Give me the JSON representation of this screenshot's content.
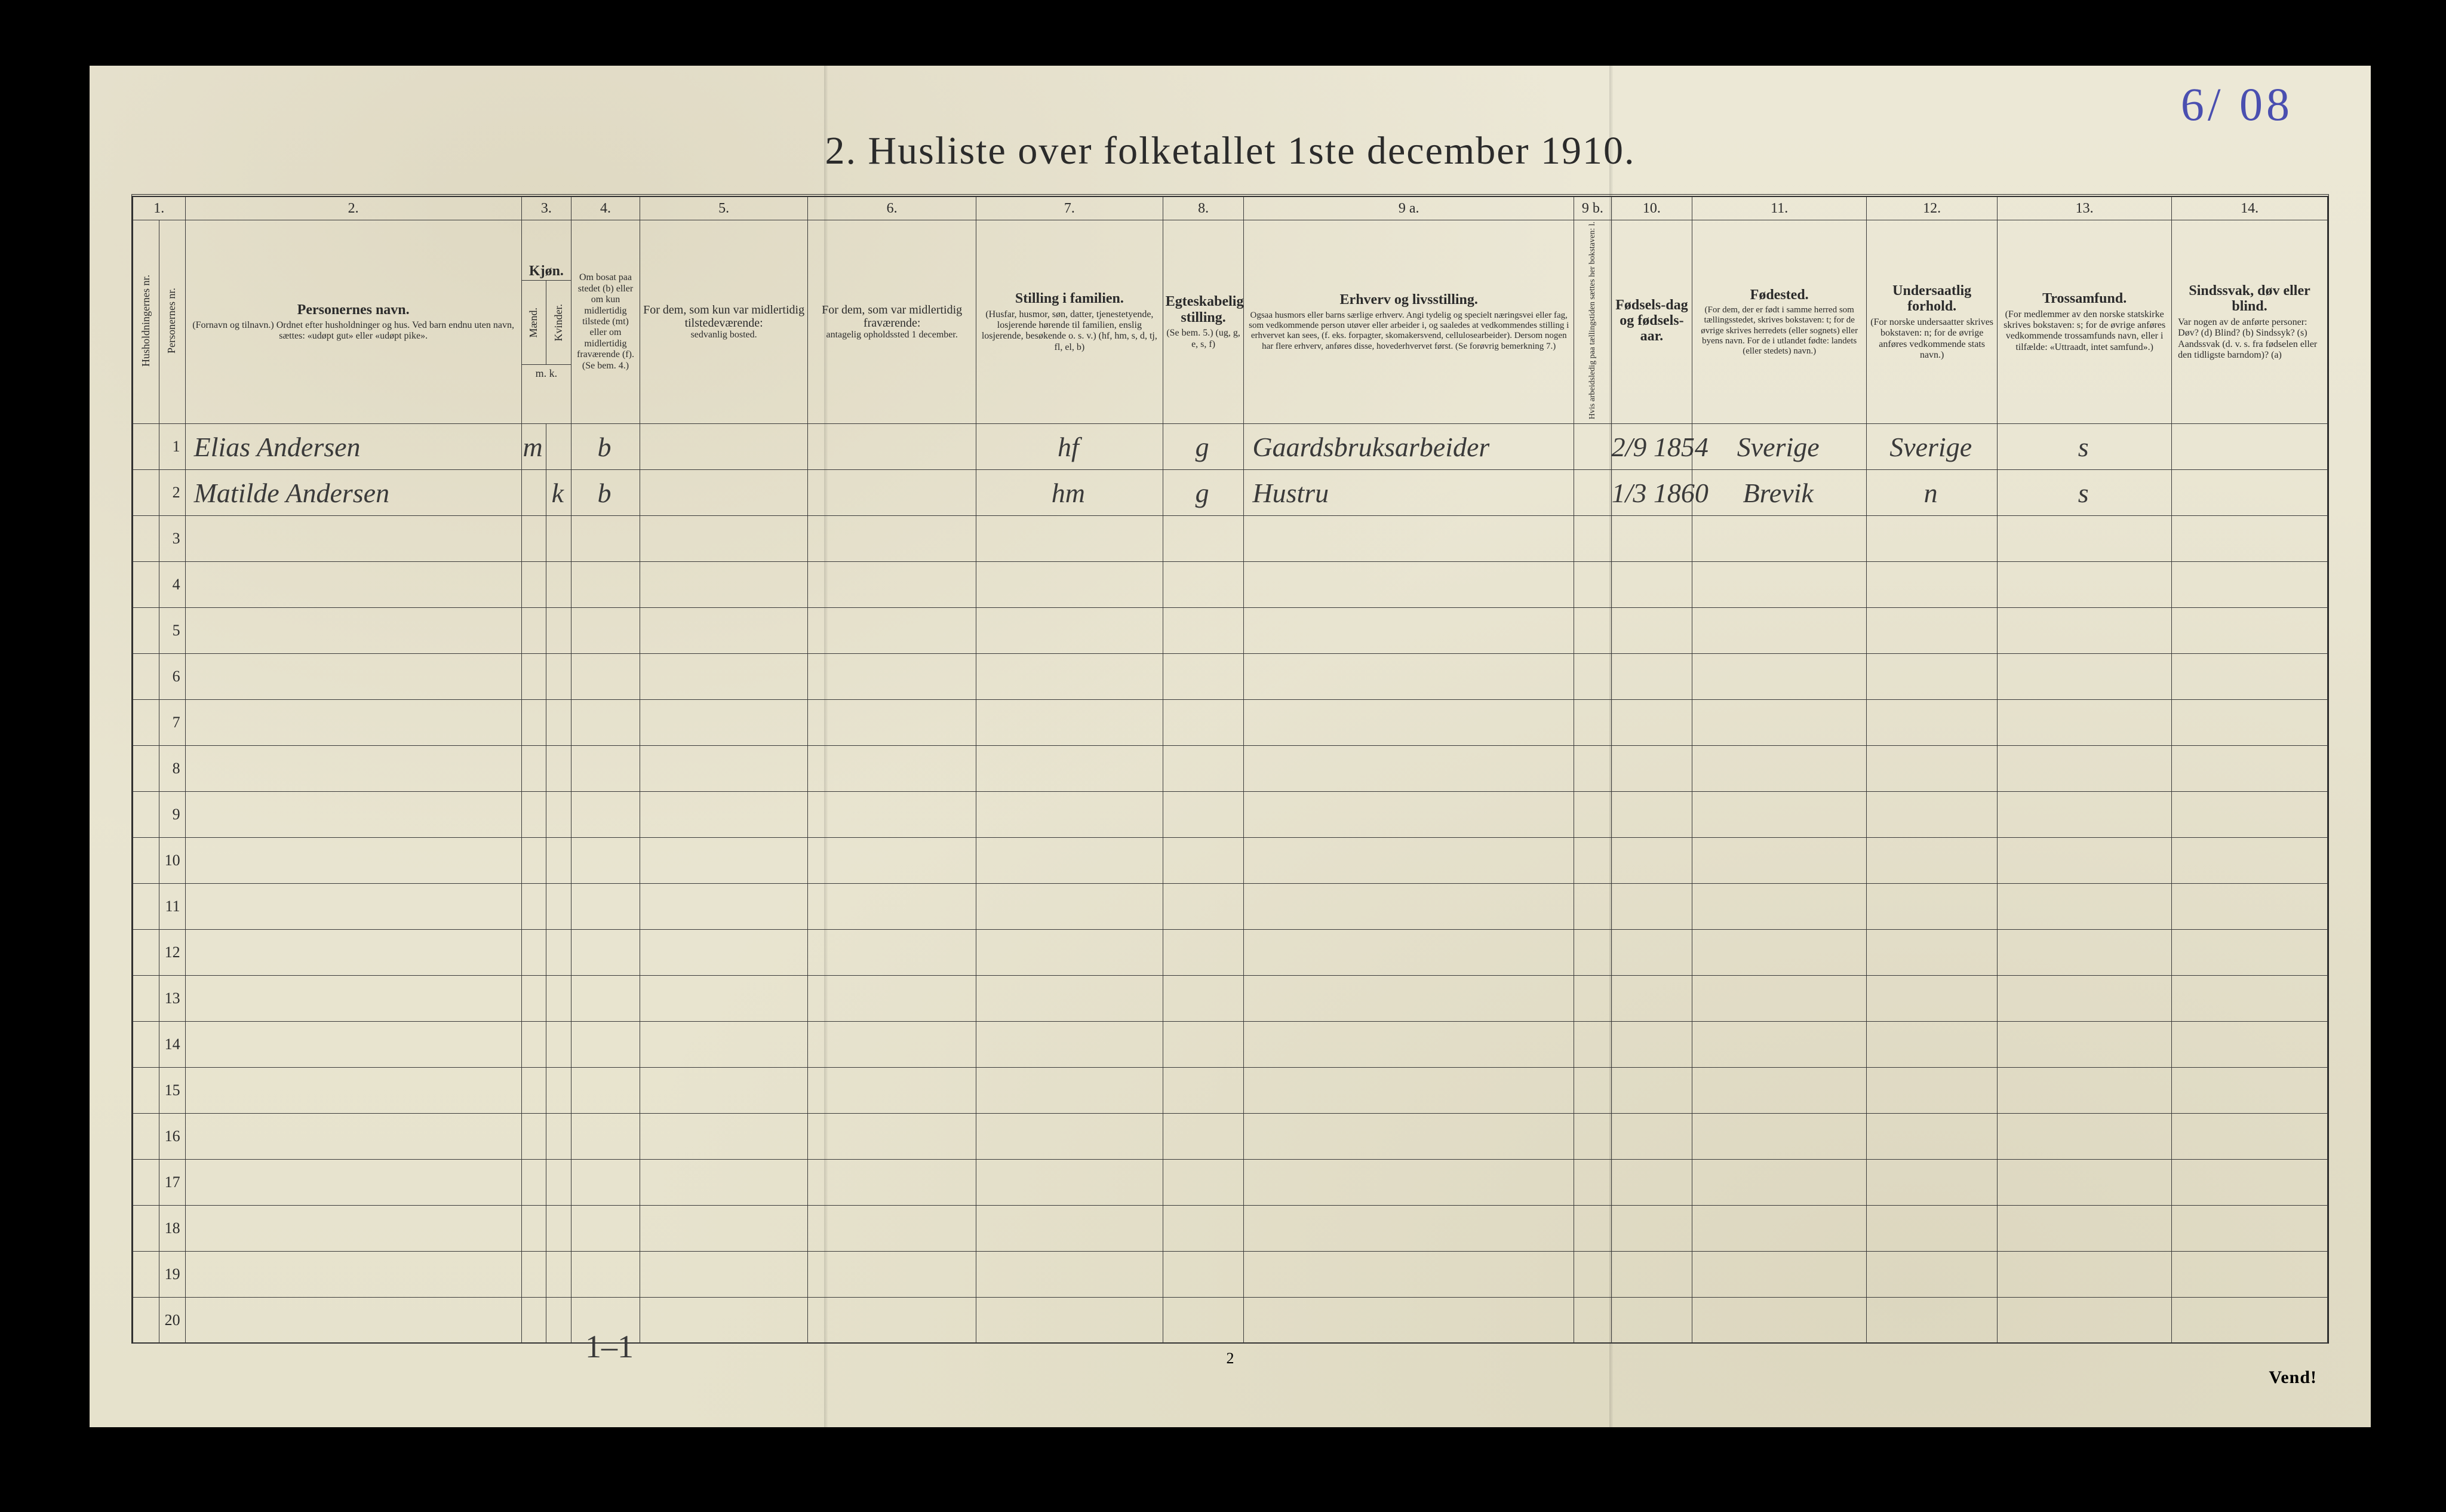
{
  "annotation_top_right": "6/ 08",
  "title": "2.   Husliste over folketallet 1ste december 1910.",
  "colors": {
    "page_bg": "#e8e4d0",
    "ink": "#2b2b2b",
    "pen_blue": "#4a4fb0",
    "handwriting": "#3a3a3a"
  },
  "columns": {
    "numbers": [
      "1.",
      "2.",
      "3.",
      "4.",
      "5.",
      "6.",
      "7.",
      "8.",
      "9 a.",
      "9 b.",
      "10.",
      "11.",
      "12.",
      "13.",
      "14."
    ],
    "c1": {
      "a": "Husholdningernes nr.",
      "b": "Personernes nr."
    },
    "c2": {
      "title": "Personernes navn.",
      "sub": "(Fornavn og tilnavn.)\nOrdnet efter husholdninger og hus.\nVed barn endnu uten navn, sættes: «udøpt gut» eller «udøpt pike»."
    },
    "c3": {
      "title": "Kjøn.",
      "a": "Mænd.",
      "b": "Kvinder.",
      "foot": "m.  k."
    },
    "c4": {
      "title": "Om bosat paa stedet (b) eller om kun midlertidig tilstede (mt) eller om midlertidig fraværende (f).",
      "foot": "(Se bem. 4.)"
    },
    "c5": {
      "title": "For dem, som kun var midlertidig tilstedeværende:",
      "sub": "sedvanlig bosted."
    },
    "c6": {
      "title": "For dem, som var midlertidig fraværende:",
      "sub": "antagelig opholdssted 1 december."
    },
    "c7": {
      "title": "Stilling i familien.",
      "sub": "(Husfar, husmor, søn, datter, tjenestetyende, losjerende hørende til familien, enslig losjerende, besøkende o. s. v.)\n(hf, hm, s, d, tj, fl, el, b)"
    },
    "c8": {
      "title": "Egteskabelig stilling.",
      "sub": "(Se bem. 5.)\n(ug, g, e, s, f)"
    },
    "c9a": {
      "title": "Erhverv og livsstilling.",
      "sub": "Ogsaa husmors eller barns særlige erhverv. Angi tydelig og specielt næringsvei eller fag, som vedkommende person utøver eller arbeider i, og saaledes at vedkommendes stilling i erhvervet kan sees, (f. eks. forpagter, skomakersvend, cellulosearbeider). Dersom nogen har flere erhverv, anføres disse, hovederhvervet først. (Se forøvrig bemerkning 7.)"
    },
    "c9b": {
      "title": "Hvis arbeidsledig paa tællingstiden sættes her bokstaven: l."
    },
    "c10": {
      "title": "Fødsels-dag og fødsels-aar."
    },
    "c11": {
      "title": "Fødested.",
      "sub": "(For dem, der er født i samme herred som tællingsstedet, skrives bokstaven: t; for de øvrige skrives herredets (eller sognets) eller byens navn. For de i utlandet fødte: landets (eller stedets) navn.)"
    },
    "c12": {
      "title": "Undersaatlig forhold.",
      "sub": "(For norske undersaatter skrives bokstaven: n; for de øvrige anføres vedkommende stats navn.)"
    },
    "c13": {
      "title": "Trossamfund.",
      "sub": "(For medlemmer av den norske statskirke skrives bokstaven: s; for de øvrige anføres vedkommende trossamfunds navn, eller i tilfælde: «Uttraadt, intet samfund».)"
    },
    "c14": {
      "title": "Sindssvak, døv eller blind.",
      "sub": "Var nogen av de anførte personer:\nDøv?        (d)\nBlind?       (b)\nSindssyk?  (s)\nAandssvak (d. v. s. fra fødselen eller den tidligste barndom)?  (a)"
    }
  },
  "rows": [
    {
      "num": "1",
      "name": "Elias Andersen",
      "sex_m": "m",
      "sex_k": "",
      "res": "b",
      "c7": "hf",
      "c8": "g",
      "c9a": "Gaardsbruksarbeider",
      "c10": "2/9 1854",
      "c11": "Sverige",
      "c12": "Sverige",
      "c13": "s"
    },
    {
      "num": "2",
      "name": "Matilde Andersen",
      "sex_m": "",
      "sex_k": "k",
      "res": "b",
      "c7": "hm",
      "c8": "g",
      "c9a": "Hustru",
      "c10": "1/3 1860",
      "c11": "Brevik",
      "c12": "n",
      "c13": "s"
    }
  ],
  "empty_row_numbers": [
    "3",
    "4",
    "5",
    "6",
    "7",
    "8",
    "9",
    "10",
    "11",
    "12",
    "13",
    "14",
    "15",
    "16",
    "17",
    "18",
    "19",
    "20"
  ],
  "footer": {
    "tally": "1–1",
    "page_number": "2",
    "turn_over": "Vend!"
  }
}
